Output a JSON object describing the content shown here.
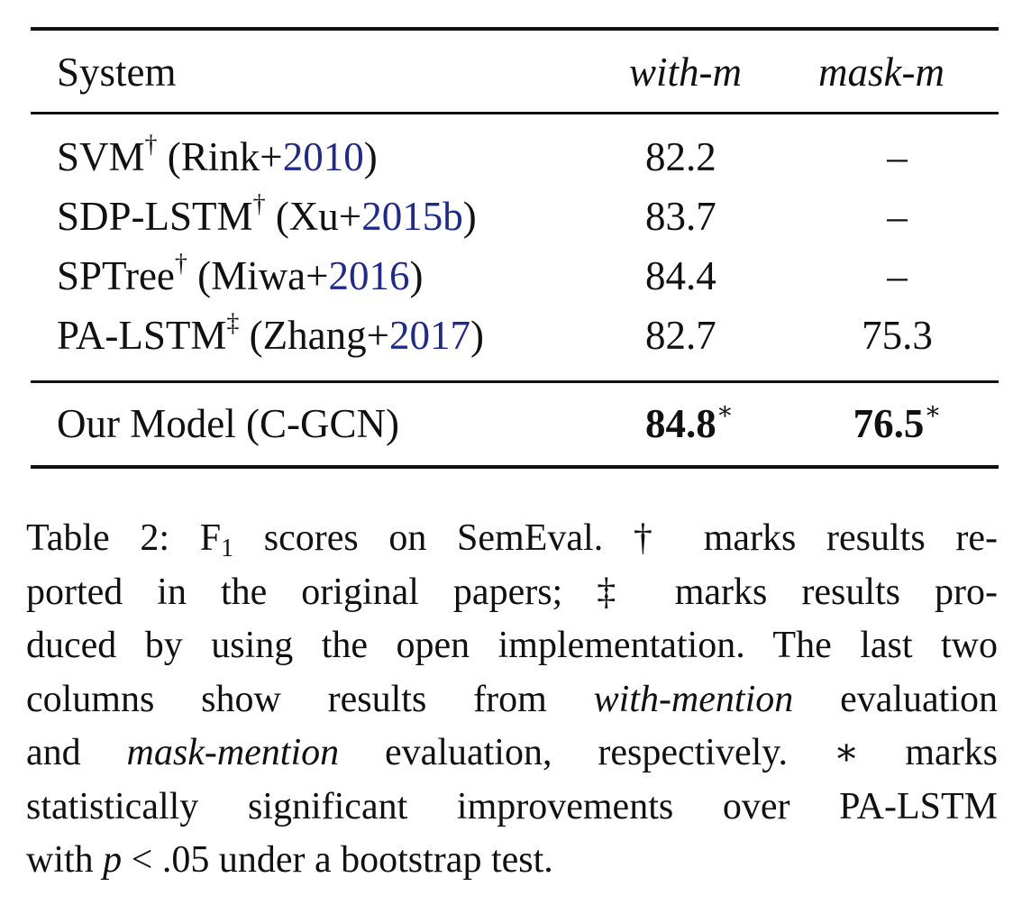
{
  "table": {
    "header": {
      "system": "System",
      "with_m": "with-m",
      "mask_m": "mask-m"
    },
    "rows": [
      {
        "name": "SVM",
        "mark": "†",
        "cite_pre": "(Rink+",
        "cite_year": "2010",
        "cite_post": ")",
        "with_m": "82.2",
        "mask_m": "–"
      },
      {
        "name": "SDP-LSTM",
        "mark": "†",
        "cite_pre": "(Xu+",
        "cite_year": "2015b",
        "cite_post": ")",
        "with_m": "83.7",
        "mask_m": "–"
      },
      {
        "name": "SPTree",
        "mark": "†",
        "cite_pre": "(Miwa+",
        "cite_year": "2016",
        "cite_post": ")",
        "with_m": "84.4",
        "mask_m": "–"
      },
      {
        "name": "PA-LSTM",
        "mark": "‡",
        "cite_pre": "(Zhang+",
        "cite_year": "2017",
        "cite_post": ")",
        "with_m": "82.7",
        "mask_m": "75.3"
      }
    ],
    "ours": {
      "name": "Our Model (C-GCN)",
      "with_m": "84.8",
      "with_m_mark": "∗",
      "mask_m": "76.5",
      "mask_m_mark": "∗"
    }
  },
  "caption": {
    "l1_a": "Table 2: F",
    "l1_sub": "1",
    "l1_b": " scores on SemEval. † marks results re-",
    "l2": "ported in the original papers; ‡ marks results pro-",
    "l3": "duced by using the open implementation. The last two",
    "l4_a": "columns show results from ",
    "l4_it": "with-mention",
    "l4_b": " evaluation",
    "l5_a": "and ",
    "l5_it": "mask-mention",
    "l5_b": " evaluation, respectively. ∗ marks",
    "l6": "statistically significant improvements over PA-LSTM",
    "l7_a": "with ",
    "l7_p": "p",
    "l7_b": " < .05 under a bootstrap test."
  }
}
